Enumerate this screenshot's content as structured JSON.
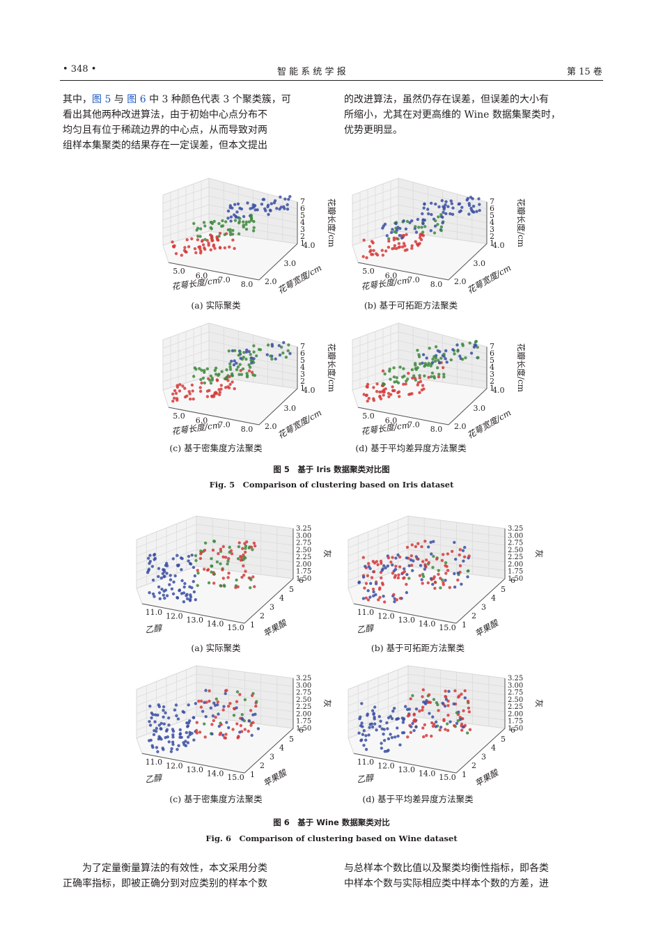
{
  "header": {
    "page": "• 348 •",
    "journal": "智 能 系 统 学 报",
    "volume": "第 15 卷"
  },
  "body_top": {
    "left": [
      "其中，",
      "图 5",
      " 与 ",
      "图 6",
      " 中 3 种颜色代表 3 个聚类簇，可",
      "看出其他两种改进算法，由于初始中心点分布不",
      "均匀且有位于稀疏边界的中心点，从而导致对两",
      "组样本集聚类的结果存在一定误差，但本文提出"
    ],
    "right": [
      "的改进算法，虽然仍存在误差，但误差的大小有",
      "所缩小，尤其在对更高维的 Wine 数据集聚类时，",
      "优势更明显。"
    ]
  },
  "fig5": {
    "axis_x_label": "花萼长度/cm",
    "axis_y_label": "花萼宽度/cm",
    "axis_z_label": "花瓣长度/cm",
    "x_ticks": [
      "5.0",
      "6.0",
      "7.0",
      "8.0"
    ],
    "y_ticks": [
      "2.0",
      "3.0",
      "4.0"
    ],
    "z_ticks": [
      "1",
      "2",
      "3",
      "4",
      "5",
      "6",
      "7"
    ],
    "subcaptions": [
      "(a) 实际聚类",
      "(b) 基于可拓距方法聚类",
      "(c) 基于密集度方法聚类",
      "(d) 基于平均差异度方法聚类"
    ],
    "title_cn": "图 5　基于 Iris 数据聚类对比图",
    "title_en": "Fig. 5　Comparison of clustering based on Iris dataset"
  },
  "fig6": {
    "axis_x_label": "乙醇",
    "axis_y_label": "苹果酸",
    "axis_z_label": "灰",
    "x_ticks": [
      "11.0",
      "12.0",
      "13.0",
      "14.0",
      "15.0"
    ],
    "y_ticks": [
      "1",
      "2",
      "3",
      "4",
      "5",
      "6"
    ],
    "z_ticks": [
      "1.50",
      "1.75",
      "2.00",
      "2.25",
      "2.50",
      "2.75",
      "3.00",
      "3.25"
    ],
    "subcaptions": [
      "(a) 实际聚类",
      "(b) 基于可拓距方法聚类",
      "(c) 基于密集度方法聚类",
      "(d) 基于平均差异度方法聚类"
    ],
    "title_cn": "图 6　基于 Wine 数据聚类对比",
    "title_en": "Fig. 6　Comparison of clustering based on Wine dataset"
  },
  "colors": {
    "blue": "#3a4fa3",
    "green": "#3d8a3d",
    "red": "#d63a3a"
  },
  "body_bottom": {
    "left": [
      "为了定量衡量算法的有效性，本文采用分类",
      "正确率指标，即被正确分到对应类别的样本个数"
    ],
    "right": [
      "与总样本个数比值以及聚类均衡性指标，即各类",
      "中样本个数与实际相应类中样本个数的方差，进"
    ]
  }
}
